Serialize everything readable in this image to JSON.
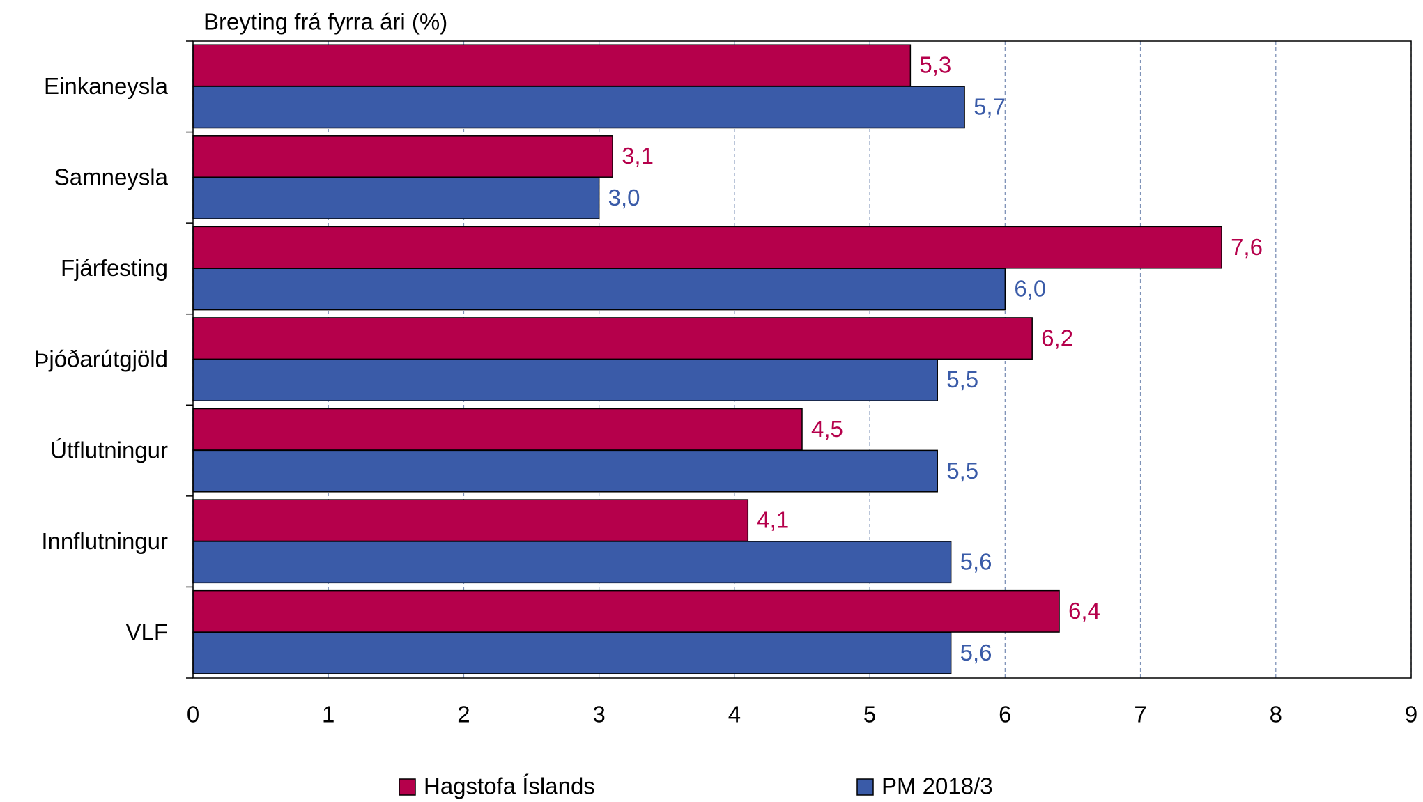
{
  "chart_data": {
    "type": "hbar",
    "title": "Breyting frá fyrra ári (%)",
    "categories": [
      "Einkaneysla",
      "Samneysla",
      "Fjárfesting",
      "Þjóðarútgjöld",
      "Útflutningur",
      "Innflutningur",
      "VLF"
    ],
    "series": [
      {
        "name": "Hagstofa Íslands",
        "color": "#b5004b",
        "values": [
          5.3,
          3.1,
          7.6,
          6.2,
          4.5,
          4.1,
          6.4
        ],
        "value_labels": [
          "5,3",
          "3,1",
          "7,6",
          "6,2",
          "4,5",
          "4,1",
          "6,4"
        ]
      },
      {
        "name": "PM 2018/3",
        "color": "#3a5ba8",
        "values": [
          5.7,
          3.0,
          6.0,
          5.5,
          5.5,
          5.6,
          5.6
        ],
        "value_labels": [
          "5,7",
          "3,0",
          "6,0",
          "5,5",
          "5,5",
          "5,6",
          "5,6"
        ]
      }
    ],
    "xlim": [
      0,
      9
    ],
    "xticks": [
      0,
      1,
      2,
      3,
      4,
      5,
      6,
      7,
      8,
      9
    ],
    "grid": true
  }
}
